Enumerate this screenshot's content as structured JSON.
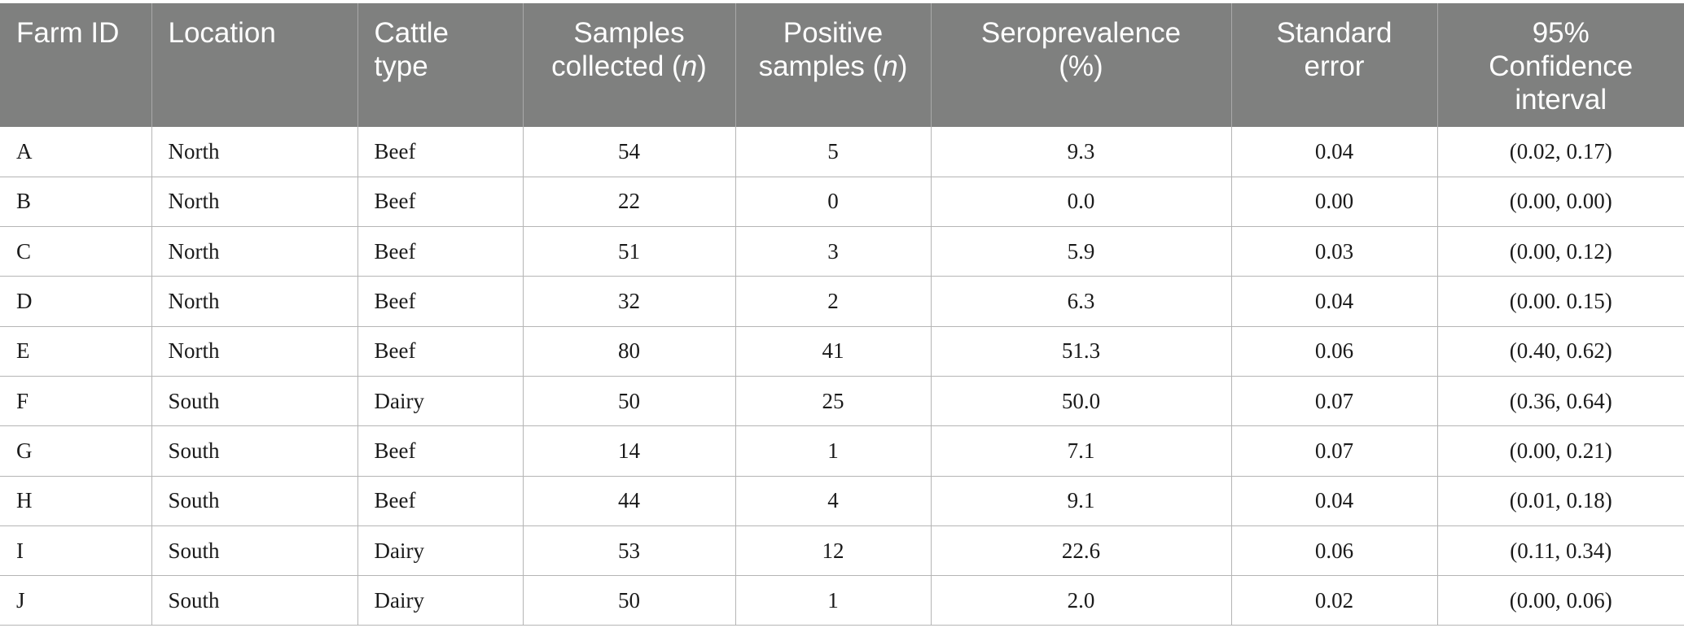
{
  "table": {
    "headers": [
      {
        "line1": "Farm ID",
        "line2": "",
        "line2_italic": "",
        "line2_end": "",
        "line3": ""
      },
      {
        "line1": "Location",
        "line2": "",
        "line2_italic": "",
        "line2_end": "",
        "line3": ""
      },
      {
        "line1": "Cattle",
        "line2": "type",
        "line2_italic": "",
        "line2_end": "",
        "line3": ""
      },
      {
        "line1": "Samples",
        "line2": "collected (",
        "line2_italic": "n",
        "line2_end": ")",
        "line3": ""
      },
      {
        "line1": "Positive",
        "line2": "samples (",
        "line2_italic": "n",
        "line2_end": ")",
        "line3": ""
      },
      {
        "line1": "Seroprevalence",
        "line2": "(%)",
        "line2_italic": "",
        "line2_end": "",
        "line3": ""
      },
      {
        "line1": "Standard",
        "line2": "error",
        "line2_italic": "",
        "line2_end": "",
        "line3": ""
      },
      {
        "line1": "95%",
        "line2": "Confidence",
        "line2_italic": "",
        "line2_end": "",
        "line3": "interval"
      }
    ],
    "rows": [
      [
        "A",
        "North",
        "Beef",
        "54",
        "5",
        "9.3",
        "0.04",
        "(0.02, 0.17)"
      ],
      [
        "B",
        "North",
        "Beef",
        "22",
        "0",
        "0.0",
        "0.00",
        "(0.00, 0.00)"
      ],
      [
        "C",
        "North",
        "Beef",
        "51",
        "3",
        "5.9",
        "0.03",
        "(0.00, 0.12)"
      ],
      [
        "D",
        "North",
        "Beef",
        "32",
        "2",
        "6.3",
        "0.04",
        "(0.00. 0.15)"
      ],
      [
        "E",
        "North",
        "Beef",
        "80",
        "41",
        "51.3",
        "0.06",
        "(0.40, 0.62)"
      ],
      [
        "F",
        "South",
        "Dairy",
        "50",
        "25",
        "50.0",
        "0.07",
        "(0.36, 0.64)"
      ],
      [
        "G",
        "South",
        "Beef",
        "14",
        "1",
        "7.1",
        "0.07",
        "(0.00, 0.21)"
      ],
      [
        "H",
        "South",
        "Beef",
        "44",
        "4",
        "9.1",
        "0.04",
        "(0.01, 0.18)"
      ],
      [
        "I",
        "South",
        "Dairy",
        "53",
        "12",
        "22.6",
        "0.06",
        "(0.11, 0.34)"
      ],
      [
        "J",
        "South",
        "Dairy",
        "50",
        "1",
        "2.0",
        "0.02",
        "(0.00, 0.06)"
      ]
    ]
  },
  "colors": {
    "header_bg": "#7f807f",
    "header_text": "#ffffff",
    "grid": "#b5b5b5"
  }
}
